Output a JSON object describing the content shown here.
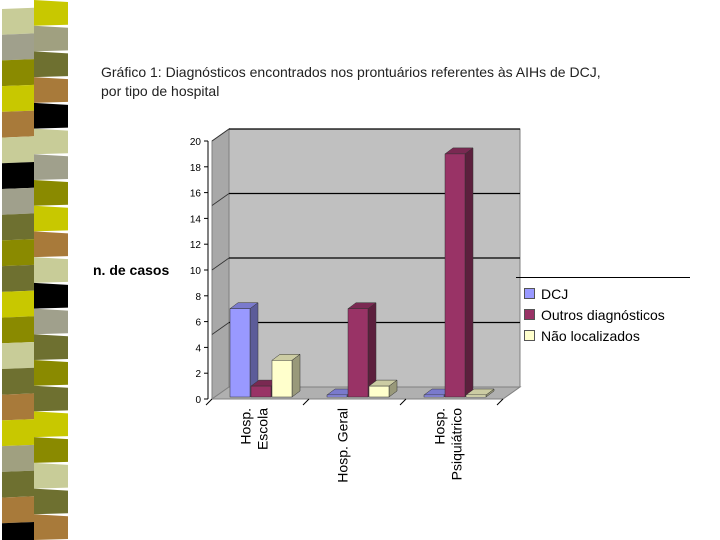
{
  "caption": {
    "line1": "Gráfico 1: Diagnósticos encontrados nos prontuários referentes às AIHs de DCJ,",
    "line2": "por tipo de hospital"
  },
  "stripe_colors": [
    "#c8c800",
    "#a0a080",
    "#6e7030",
    "#a87a3a",
    "#000000",
    "#c8cc98",
    "#a0a08c",
    "#8a8a00",
    "#c8c800",
    "#a87a3a",
    "#c8cc98",
    "#000000",
    "#a0a08c",
    "#6e7030",
    "#8a8a00",
    "#6e7030",
    "#c8c800",
    "#8a8a00",
    "#c8cc98",
    "#6e7030",
    "#a87a3a"
  ],
  "chart_data": {
    "type": "bar",
    "title": "Gráfico 1: Diagnósticos encontrados nos prontuários referentes às AIHs de DCJ, por tipo de hospital",
    "ylabel": "n. de casos",
    "xlabel": "",
    "ylim": [
      0,
      20
    ],
    "yticks": [
      "0",
      "2",
      "4",
      "6",
      "8",
      "10",
      "12",
      "14",
      "16",
      "18",
      "20"
    ],
    "categories": [
      {
        "line1": "Hosp.",
        "line2": "Escola"
      },
      {
        "line1": "Hosp. Geral",
        "line2": ""
      },
      {
        "line1": "Hosp.",
        "line2": "Psiquiátrico"
      }
    ],
    "series": [
      {
        "name": "DCJ",
        "color": "#9999ff",
        "values": [
          7,
          0,
          0
        ]
      },
      {
        "name": "Outros diagnósticos",
        "color": "#993366",
        "values": [
          1,
          7,
          19
        ]
      },
      {
        "name": "Não localizados",
        "color": "#ffffcc",
        "values": [
          3,
          1,
          0
        ]
      }
    ],
    "legend_position": "right",
    "gridlines": [
      5,
      10,
      15,
      20
    ]
  }
}
